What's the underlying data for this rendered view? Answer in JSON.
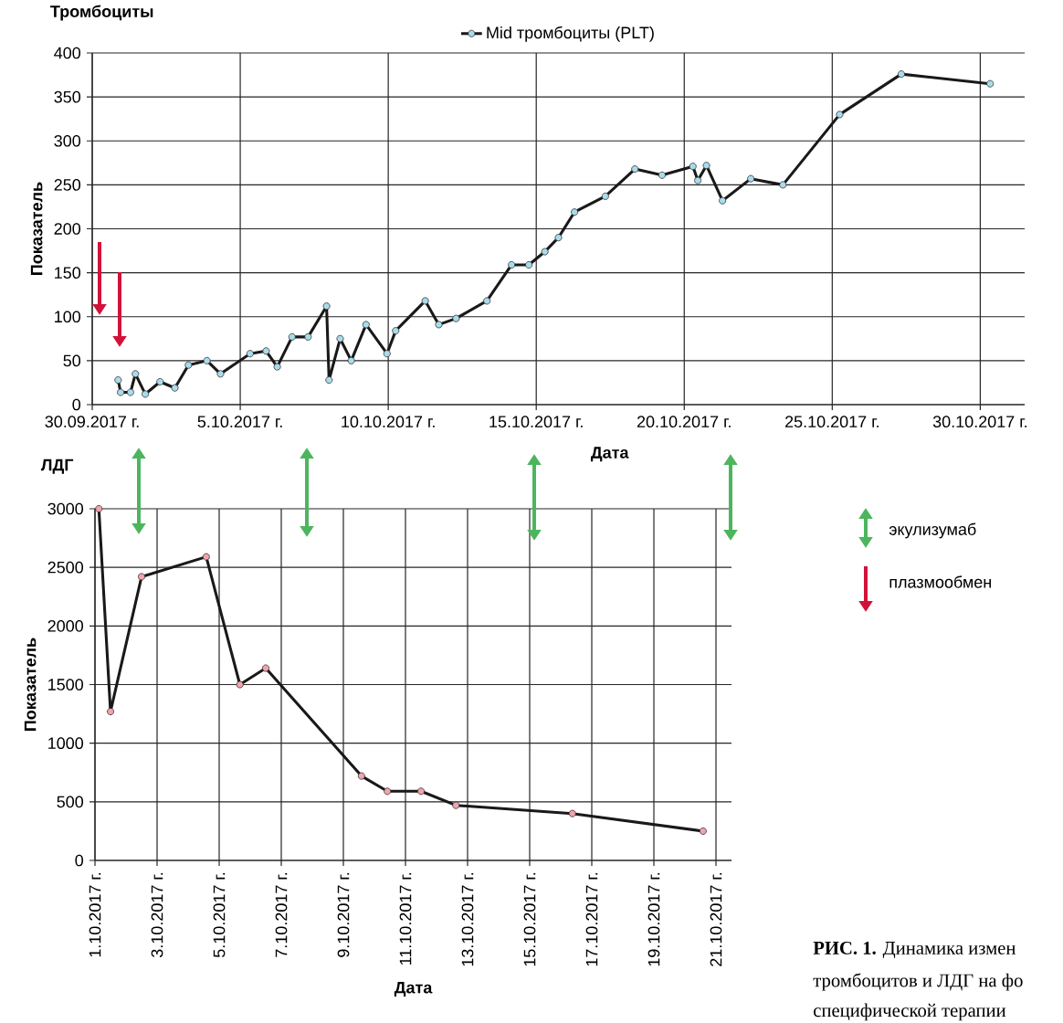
{
  "chart_data": [
    {
      "type": "line",
      "title": "Тромбоциты",
      "xlabel": "Дата",
      "ylabel": "Показатель",
      "x": [
        "2017-09-30T21:00",
        "2017-09-30T23:00",
        "2017-10-01T07:00",
        "2017-10-01T11:00",
        "2017-10-01T19:00",
        "2017-10-02T07:00",
        "2017-10-02T19:00",
        "2017-10-03T06:00",
        "2017-10-03T21:00",
        "2017-10-04T08:00",
        "2017-10-05T08:00",
        "2017-10-05T21:00",
        "2017-10-06T06:00",
        "2017-10-06T18:00",
        "2017-10-07T07:00",
        "2017-10-07T22:00",
        "2017-10-08T00:00",
        "2017-10-08T09:00",
        "2017-10-08T18:00",
        "2017-10-09T06:00",
        "2017-10-09T23:00",
        "2017-10-10T06:00",
        "2017-10-11T06:00",
        "2017-10-11T17:00",
        "2017-10-12T07:00",
        "2017-10-13T08:00",
        "2017-10-14T04:00",
        "2017-10-14T18:00",
        "2017-10-15T07:00",
        "2017-10-15T18:00",
        "2017-10-16T07:00",
        "2017-10-17T08:00",
        "2017-10-18T08:00",
        "2017-10-19T06:00",
        "2017-10-20T07:00",
        "2017-10-20T11:00",
        "2017-10-20T18:00",
        "2017-10-21T07:00",
        "2017-10-22T06:00",
        "2017-10-23T08:00",
        "2017-10-25T06:00",
        "2017-10-27T08:00",
        "2017-10-30T08:00"
      ],
      "series": [
        {
          "name": "Mid тромбоциты (PLT)",
          "color": "#a8dcec",
          "values": [
            28,
            14,
            14,
            35,
            12,
            26,
            19,
            45,
            50,
            35,
            58,
            61,
            43,
            77,
            77,
            112,
            28,
            75,
            50,
            91,
            58,
            84,
            118,
            91,
            98,
            118,
            159,
            159,
            174,
            190,
            219,
            237,
            268,
            261,
            271,
            255,
            272,
            232,
            257,
            250,
            330,
            376,
            365
          ]
        }
      ],
      "xlim": [
        "2017-09-30",
        "2017-10-31T12:00"
      ],
      "xticks": [
        {
          "value": "2017-09-30",
          "label": "30.09.2017 г."
        },
        {
          "value": "2017-10-05",
          "label": "5.10.2017 г."
        },
        {
          "value": "2017-10-10",
          "label": "10.10.2017 г."
        },
        {
          "value": "2017-10-15",
          "label": "15.10.2017 г."
        },
        {
          "value": "2017-10-20",
          "label": "20.10.2017 г."
        },
        {
          "value": "2017-10-25",
          "label": "25.10.2017 г."
        },
        {
          "value": "2017-10-30",
          "label": "30.10.2017 г."
        }
      ],
      "ylim": [
        0,
        400
      ],
      "yticks": [
        0,
        50,
        100,
        150,
        200,
        250,
        300,
        350,
        400
      ],
      "grid": true,
      "legend": "top",
      "marker": "circle"
    },
    {
      "type": "line",
      "title": "ЛДГ",
      "xlabel": "Дата",
      "ylabel": "Показатель",
      "x": [
        "2017-10-01T03:00",
        "2017-10-01T12:00",
        "2017-10-02T12:00",
        "2017-10-04T14:00",
        "2017-10-05T16:00",
        "2017-10-06T12:00",
        "2017-10-09T14:00",
        "2017-10-10T10:00",
        "2017-10-11T12:00",
        "2017-10-12T15:00",
        "2017-10-16T09:00",
        "2017-10-20T14:00"
      ],
      "series": [
        {
          "color": "#f4a3ae",
          "values": [
            3000,
            1270,
            2420,
            2590,
            1500,
            1640,
            720,
            590,
            590,
            470,
            400,
            250
          ]
        }
      ],
      "xlim": [
        "2017-10-01",
        "2017-10-21T12:00"
      ],
      "xticks": [
        {
          "value": "2017-10-01",
          "label": "1.10.2017 г."
        },
        {
          "value": "2017-10-03",
          "label": "3.10.2017 г."
        },
        {
          "value": "2017-10-05",
          "label": "5.10.2017 г."
        },
        {
          "value": "2017-10-07",
          "label": "7.10.2017 г."
        },
        {
          "value": "2017-10-09",
          "label": "9.10.2017 г."
        },
        {
          "value": "2017-10-11",
          "label": "11.10.2017 г."
        },
        {
          "value": "2017-10-13",
          "label": "13.10.2017 г."
        },
        {
          "value": "2017-10-15",
          "label": "15.10.2017 г."
        },
        {
          "value": "2017-10-17",
          "label": "17.10.2017 г."
        },
        {
          "value": "2017-10-19",
          "label": "19.10.2017 г."
        },
        {
          "value": "2017-10-21",
          "label": "21.10.2017 г."
        }
      ],
      "ylim": [
        0,
        3000
      ],
      "yticks": [
        0,
        500,
        1000,
        1500,
        2000,
        2500,
        3000
      ],
      "grid": true,
      "marker": "circle"
    },
    {
      "type": "other",
      "annotations": [
        "экулизумаб",
        "плазмообмен",
        "**РИС. 1.** Динамика измен",
        "тромбоцитов и ЛДГ на фо",
        "специфической терапии"
      ]
    }
  ]
}
